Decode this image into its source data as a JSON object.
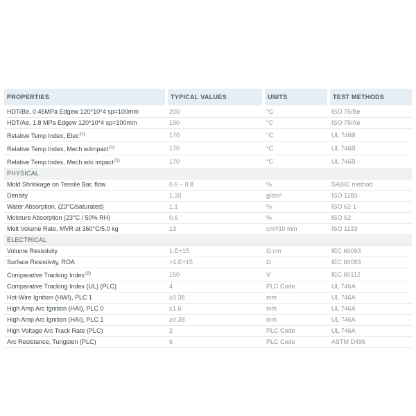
{
  "table": {
    "header": {
      "columns": [
        {
          "label": "PROPERTIES"
        },
        {
          "label": "TYPICAL VALUES"
        },
        {
          "label": "UNITS"
        },
        {
          "label": "TEST METHODS"
        }
      ]
    },
    "rows": [
      {
        "kind": "data",
        "property": "HDT/Be, 0.45MPa Edgew 120*10*4 sp=100mm",
        "note": "",
        "value": "200",
        "unit": "°C",
        "method": "ISO 75/Be"
      },
      {
        "kind": "data",
        "property": "HDT/Ae, 1.8 MPa Edgew 120*10*4 sp=100mm",
        "note": "",
        "value": "190",
        "unit": "°C",
        "method": "ISO 75/Ae"
      },
      {
        "kind": "data",
        "property": "Relative Temp Index, Elec",
        "note": "(1)",
        "value": "170",
        "unit": "°C",
        "method": "UL 746B"
      },
      {
        "kind": "data",
        "property": "Relative Temp Index, Mech w/impact",
        "note": "(1)",
        "value": "170",
        "unit": "°C",
        "method": "UL 746B"
      },
      {
        "kind": "data",
        "property": "Relative Temp Index, Mech w/o impact",
        "note": "(1)",
        "value": "170",
        "unit": "°C",
        "method": "UL 746B"
      },
      {
        "kind": "section",
        "label": "PHYSICAL"
      },
      {
        "kind": "data",
        "property": "Mold Shrinkage on Tensile Bar, flow",
        "note": "",
        "value": "0.6 – 0.8",
        "unit": "%",
        "method": "SABIC method"
      },
      {
        "kind": "data",
        "property": "Density",
        "note": "",
        "value": "1.33",
        "unit": "g/cm³",
        "method": "ISO 1183"
      },
      {
        "kind": "data",
        "property": "Water Absorption, (23°C/saturated)",
        "note": "",
        "value": "1.1",
        "unit": "%",
        "method": "ISO 62-1"
      },
      {
        "kind": "data",
        "property": "Moisture Absorption (23°C / 50% RH)",
        "note": "",
        "value": "0.6",
        "unit": "%",
        "method": "ISO 62"
      },
      {
        "kind": "data",
        "property": "Melt Volume Rate, MVR at 360°C/5.0 kg",
        "note": "",
        "value": "13",
        "unit": "cm³/10 min",
        "method": "ISO 1133"
      },
      {
        "kind": "section",
        "label": "ELECTRICAL"
      },
      {
        "kind": "data",
        "property": "Volume Resistivity",
        "note": "",
        "value": "1.E+15",
        "unit": "Ω.cm",
        "method": "IEC 60093"
      },
      {
        "kind": "data",
        "property": "Surface Resistivity, ROA",
        "note": "",
        "value": ">1.E+15",
        "unit": "Ω",
        "method": "IEC 60093"
      },
      {
        "kind": "data",
        "property": "Comparative Tracking Index",
        "note": "(2)",
        "value": "150",
        "unit": "V",
        "method": "IEC 60112"
      },
      {
        "kind": "data",
        "property": "Comparative Tracking Index (UL) (PLC)",
        "note": "",
        "value": "4",
        "unit": "PLC Code",
        "method": "UL 746A"
      },
      {
        "kind": "data",
        "property": "Hot-Wire Ignition (HWI), PLC 1",
        "note": "",
        "value": "≥0.38",
        "unit": "mm",
        "method": "UL 746A"
      },
      {
        "kind": "data",
        "property": "High Amp Arc Ignition (HAI), PLC 0",
        "note": "",
        "value": "≥1.6",
        "unit": "mm",
        "method": "UL 746A"
      },
      {
        "kind": "data",
        "property": "High Amp Arc Ignition (HAI), PLC 1",
        "note": "",
        "value": "≥0.38",
        "unit": "mm",
        "method": "UL 746A"
      },
      {
        "kind": "data",
        "property": "High Voltage Arc Track Rate (PLC)",
        "note": "",
        "value": "2",
        "unit": "PLC Code",
        "method": "UL 746A"
      },
      {
        "kind": "data",
        "property": "Arc Resistance, Tungsten (PLC)",
        "note": "",
        "value": "6",
        "unit": "PLC Code",
        "method": "ASTM D495"
      }
    ]
  },
  "colors": {
    "header_bg": "#e5eef4",
    "header_text": "#4d5963",
    "section_bg": "#f0f1f1",
    "section_text": "#525d64",
    "property_text": "#3b474f",
    "value_text": "#8d9499",
    "row_divider": "#e9eaea",
    "page_bg": "#ffffff"
  }
}
